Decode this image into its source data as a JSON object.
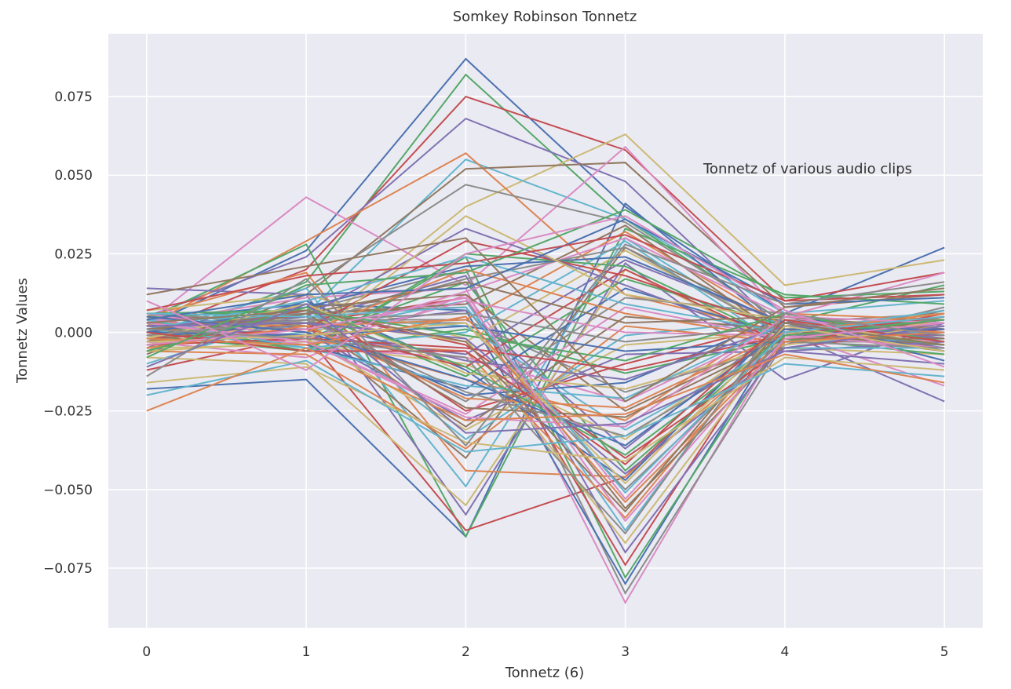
{
  "chart_data": {
    "type": "line",
    "title": "Somkey Robinson Tonnetz",
    "xlabel": "Tonnetz (6)",
    "ylabel": "Tonnetz Values",
    "annotation": "Tonnetz of various audio clips",
    "x": [
      0,
      1,
      2,
      3,
      4,
      5
    ],
    "xticks": [
      "0",
      "1",
      "2",
      "3",
      "4",
      "5"
    ],
    "yticks": [
      -0.075,
      -0.05,
      -0.025,
      0.0,
      0.025,
      0.05,
      0.075
    ],
    "ytick_labels": [
      "−0.075",
      "−0.050",
      "−0.025",
      "0.000",
      "0.025",
      "0.050",
      "0.075"
    ],
    "xlim": [
      -0.24,
      5.24
    ],
    "ylim": [
      -0.094,
      0.095
    ],
    "grid": true,
    "background": "#eaeaf2",
    "palette": [
      "#4c72b0",
      "#55a868",
      "#c44e52",
      "#8172b2",
      "#ccb974",
      "#64b5cd",
      "#dd8452",
      "#937860",
      "#da8bc3",
      "#8c8c8c"
    ],
    "series": [
      {
        "values": [
          0.002,
          0.026,
          0.087,
          0.04,
          0.006,
          0.027
        ]
      },
      {
        "values": [
          -0.003,
          0.016,
          0.082,
          0.036,
          0.003,
          0.015
        ]
      },
      {
        "values": [
          0.0,
          0.02,
          0.075,
          0.058,
          0.01,
          0.019
        ]
      },
      {
        "values": [
          0.005,
          0.024,
          0.068,
          0.048,
          0.0,
          -0.022
        ]
      },
      {
        "values": [
          0.001,
          -0.001,
          0.04,
          0.063,
          0.015,
          0.023
        ]
      },
      {
        "values": [
          -0.01,
          0.006,
          0.055,
          0.036,
          0.006,
          0.01
        ]
      },
      {
        "values": [
          0.002,
          0.029,
          0.057,
          0.012,
          0.0,
          -0.005
        ]
      },
      {
        "values": [
          -0.007,
          0.012,
          0.052,
          0.054,
          0.008,
          0.012
        ]
      },
      {
        "values": [
          0.003,
          0.043,
          0.015,
          0.059,
          0.005,
          0.019
        ]
      },
      {
        "values": [
          -0.005,
          0.014,
          0.047,
          0.035,
          0.003,
          0.006
        ]
      },
      {
        "values": [
          -0.018,
          -0.015,
          -0.065,
          0.041,
          0.0,
          0.002
        ]
      },
      {
        "values": [
          0.004,
          0.028,
          -0.065,
          0.033,
          0.012,
          0.009
        ]
      },
      {
        "values": [
          -0.012,
          -0.001,
          -0.063,
          -0.046,
          0.004,
          -0.006
        ]
      },
      {
        "values": [
          0.014,
          0.012,
          -0.058,
          0.022,
          -0.015,
          0.003
        ]
      },
      {
        "values": [
          -0.008,
          -0.01,
          -0.055,
          0.02,
          -0.005,
          -0.007
        ]
      },
      {
        "values": [
          0.0,
          0.014,
          -0.049,
          0.03,
          -0.002,
          -0.004
        ]
      },
      {
        "values": [
          0.005,
          0.019,
          -0.044,
          -0.046,
          -0.002,
          0.0
        ]
      },
      {
        "values": [
          0.006,
          0.002,
          -0.04,
          0.027,
          0.002,
          -0.002
        ]
      },
      {
        "values": [
          0.003,
          0.011,
          0.014,
          -0.086,
          0.0,
          -0.017
        ]
      },
      {
        "values": [
          -0.006,
          0.007,
          0.02,
          -0.083,
          -0.003,
          -0.003
        ]
      },
      {
        "values": [
          0.004,
          0.009,
          0.007,
          -0.08,
          0.002,
          -0.001
        ]
      },
      {
        "values": [
          -0.001,
          -0.006,
          0.024,
          -0.078,
          -0.001,
          0.004
        ]
      },
      {
        "values": [
          -0.002,
          0.003,
          0.011,
          -0.074,
          0.004,
          0.001
        ]
      },
      {
        "values": [
          0.001,
          0.004,
          0.018,
          -0.07,
          -0.003,
          0.005
        ]
      },
      {
        "values": [
          0.007,
          0.012,
          -0.002,
          -0.067,
          0.0,
          -0.006
        ]
      },
      {
        "values": [
          -0.004,
          0.0,
          0.01,
          -0.063,
          0.005,
          -0.002
        ]
      },
      {
        "values": [
          0.002,
          -0.003,
          -0.006,
          -0.059,
          0.002,
          0.002
        ]
      },
      {
        "values": [
          0.0,
          0.006,
          0.008,
          -0.056,
          -0.004,
          0.007
        ]
      },
      {
        "values": [
          -0.003,
          -0.008,
          0.012,
          -0.053,
          0.001,
          -0.003
        ]
      },
      {
        "values": [
          0.006,
          0.003,
          0.003,
          -0.05,
          -0.002,
          0.0
        ]
      },
      {
        "values": [
          -0.006,
          0.01,
          -0.012,
          -0.047,
          0.004,
          -0.009
        ]
      },
      {
        "values": [
          0.003,
          -0.002,
          0.016,
          -0.044,
          0.0,
          0.003
        ]
      },
      {
        "values": [
          -0.001,
          0.007,
          -0.004,
          -0.04,
          -0.005,
          0.001
        ]
      },
      {
        "values": [
          0.002,
          0.001,
          0.007,
          -0.037,
          0.003,
          -0.005
        ]
      },
      {
        "values": [
          -0.005,
          -0.004,
          -0.01,
          -0.034,
          0.001,
          0.006
        ]
      },
      {
        "values": [
          0.004,
          0.005,
          0.002,
          -0.031,
          -0.003,
          -0.002
        ]
      },
      {
        "values": [
          0.001,
          -0.001,
          -0.015,
          -0.028,
          0.006,
          0.004
        ]
      },
      {
        "values": [
          -0.002,
          0.008,
          0.012,
          -0.025,
          -0.001,
          -0.004
        ]
      },
      {
        "values": [
          0.005,
          -0.005,
          -0.008,
          -0.022,
          0.002,
          0.002
        ]
      },
      {
        "values": [
          -0.004,
          0.004,
          0.004,
          -0.019,
          -0.004,
          0.008
        ]
      },
      {
        "values": [
          0.0,
          0.002,
          -0.02,
          -0.016,
          0.005,
          -0.001
        ]
      },
      {
        "values": [
          0.003,
          -0.006,
          0.001,
          -0.013,
          -0.002,
          -0.007
        ]
      },
      {
        "values": [
          -0.003,
          0.009,
          -0.025,
          -0.01,
          0.003,
          0.003
        ]
      },
      {
        "values": [
          0.006,
          0.0,
          -0.028,
          -0.007,
          -0.006,
          -0.003
        ]
      },
      {
        "values": [
          -0.001,
          -0.002,
          -0.031,
          -0.004,
          0.0,
          0.005
        ]
      },
      {
        "values": [
          0.002,
          0.006,
          -0.034,
          -0.001,
          0.004,
          -0.001
        ]
      },
      {
        "values": [
          -0.006,
          -0.007,
          -0.037,
          0.002,
          -0.003,
          0.002
        ]
      },
      {
        "values": [
          0.001,
          0.003,
          -0.03,
          0.005,
          0.001,
          -0.006
        ]
      },
      {
        "values": [
          0.004,
          -0.003,
          -0.026,
          0.008,
          -0.002,
          0.004
        ]
      },
      {
        "values": [
          -0.002,
          0.005,
          -0.022,
          0.011,
          0.006,
          -0.002
        ]
      },
      {
        "values": [
          0.0,
          -0.004,
          -0.018,
          0.014,
          -0.001,
          0.001
        ]
      },
      {
        "values": [
          0.005,
          0.007,
          -0.014,
          0.017,
          0.002,
          -0.004
        ]
      },
      {
        "values": [
          -0.003,
          0.001,
          -0.011,
          0.02,
          -0.004,
          0.006
        ]
      },
      {
        "values": [
          0.002,
          -0.001,
          -0.007,
          0.023,
          0.003,
          -0.002
        ]
      },
      {
        "values": [
          -0.004,
          0.004,
          -0.003,
          0.026,
          0.0,
          0.003
        ]
      },
      {
        "values": [
          0.001,
          -0.005,
          0.0,
          0.029,
          -0.005,
          -0.005
        ]
      },
      {
        "values": [
          0.003,
          0.002,
          0.004,
          0.032,
          0.002,
          0.0
        ]
      },
      {
        "values": [
          -0.001,
          0.006,
          0.009,
          0.034,
          -0.002,
          0.004
        ]
      },
      {
        "values": [
          0.006,
          -0.002,
          0.013,
          0.03,
          0.005,
          -0.003
        ]
      },
      {
        "values": [
          -0.005,
          0.003,
          0.017,
          0.027,
          -0.001,
          0.002
        ]
      },
      {
        "values": [
          0.0,
          0.008,
          0.021,
          0.024,
          0.003,
          -0.006
        ]
      },
      {
        "values": [
          0.004,
          -0.006,
          0.025,
          0.021,
          -0.003,
          0.005
        ]
      },
      {
        "values": [
          -0.002,
          0.001,
          0.029,
          0.018,
          0.001,
          -0.001
        ]
      },
      {
        "values": [
          0.002,
          0.005,
          0.033,
          0.015,
          -0.004,
          0.003
        ]
      },
      {
        "values": [
          -0.006,
          -0.003,
          0.037,
          0.012,
          0.004,
          -0.004
        ]
      },
      {
        "values": [
          0.001,
          0.01,
          0.024,
          0.009,
          0.0,
          0.007
        ]
      },
      {
        "values": [
          0.005,
          0.0,
          0.02,
          0.006,
          -0.002,
          -0.002
        ]
      },
      {
        "values": [
          -0.003,
          0.006,
          0.016,
          0.003,
          0.005,
          0.001
        ]
      },
      {
        "values": [
          0.003,
          -0.004,
          0.01,
          0.0,
          -0.001,
          -0.005
        ]
      },
      {
        "values": [
          -0.001,
          0.004,
          0.006,
          -0.003,
          0.002,
          0.004
        ]
      },
      {
        "values": [
          0.0,
          -0.001,
          0.002,
          -0.006,
          -0.003,
          0.0
        ]
      },
      {
        "values": [
          0.006,
          0.007,
          -0.001,
          -0.009,
          0.006,
          -0.003
        ]
      },
      {
        "values": [
          -0.004,
          -0.002,
          -0.005,
          -0.012,
          -0.001,
          0.005
        ]
      },
      {
        "values": [
          0.002,
          0.003,
          -0.009,
          -0.015,
          0.002,
          -0.001
        ]
      },
      {
        "values": [
          -0.002,
          0.009,
          -0.013,
          -0.018,
          -0.004,
          0.002
        ]
      },
      {
        "values": [
          0.004,
          -0.005,
          -0.017,
          -0.021,
          0.003,
          -0.004
        ]
      },
      {
        "values": [
          -0.005,
          0.002,
          -0.021,
          -0.024,
          0.0,
          0.006
        ]
      },
      {
        "values": [
          0.001,
          0.006,
          -0.024,
          -0.027,
          -0.002,
          -0.002
        ]
      },
      {
        "values": [
          0.003,
          -0.003,
          -0.027,
          -0.03,
          0.005,
          0.003
        ]
      },
      {
        "values": [
          -0.001,
          0.004,
          -0.019,
          -0.033,
          -0.003,
          -0.005
        ]
      },
      {
        "values": [
          0.005,
          0.0,
          -0.015,
          -0.036,
          0.001,
          0.001
        ]
      },
      {
        "values": [
          -0.006,
          0.008,
          -0.011,
          -0.039,
          -0.001,
          0.004
        ]
      },
      {
        "values": [
          0.0,
          -0.006,
          -0.006,
          -0.042,
          0.004,
          -0.003
        ]
      },
      {
        "values": [
          0.002,
          0.003,
          -0.002,
          -0.045,
          -0.005,
          0.002
        ]
      },
      {
        "values": [
          -0.003,
          -0.001,
          0.003,
          -0.048,
          0.002,
          -0.006
        ]
      },
      {
        "values": [
          0.006,
          0.005,
          0.008,
          -0.051,
          0.0,
          0.005
        ]
      },
      {
        "values": [
          -0.002,
          -0.004,
          0.005,
          -0.054,
          -0.003,
          0.0
        ]
      },
      {
        "values": [
          0.003,
          0.007,
          -0.003,
          -0.057,
          0.003,
          -0.004
        ]
      },
      {
        "values": [
          -0.004,
          0.001,
          0.011,
          -0.06,
          -0.002,
          0.003
        ]
      },
      {
        "values": [
          0.001,
          -0.002,
          -0.008,
          -0.064,
          0.006,
          -0.001
        ]
      },
      {
        "values": [
          0.004,
          0.012,
          0.014,
          0.036,
          0.009,
          0.011
        ]
      },
      {
        "values": [
          -0.008,
          0.015,
          0.019,
          0.039,
          0.011,
          0.013
        ]
      },
      {
        "values": [
          0.007,
          0.018,
          0.022,
          0.031,
          0.01,
          0.012
        ]
      },
      {
        "values": [
          -0.011,
          0.009,
          -0.032,
          -0.029,
          -0.006,
          -0.01
        ]
      },
      {
        "values": [
          -0.016,
          -0.011,
          -0.035,
          -0.041,
          -0.008,
          -0.012
        ]
      },
      {
        "values": [
          -0.02,
          -0.009,
          -0.038,
          -0.033,
          -0.01,
          -0.014
        ]
      },
      {
        "values": [
          -0.025,
          -0.005,
          -0.028,
          -0.026,
          -0.007,
          -0.016
        ]
      },
      {
        "values": [
          0.012,
          0.021,
          0.03,
          -0.022,
          0.008,
          0.014
        ]
      },
      {
        "values": [
          0.01,
          -0.012,
          0.025,
          0.037,
          0.007,
          -0.011
        ]
      },
      {
        "values": [
          -0.014,
          0.017,
          -0.036,
          0.028,
          0.009,
          0.016
        ]
      }
    ]
  }
}
